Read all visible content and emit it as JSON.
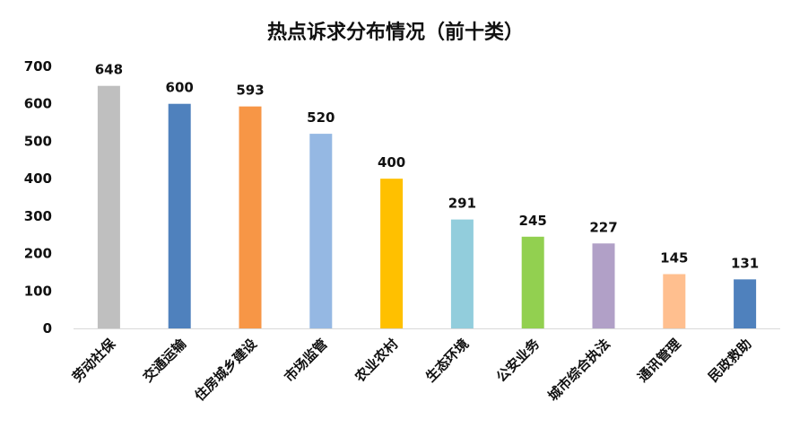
{
  "chart_data": {
    "type": "bar",
    "title": "热点诉求分布情况（前十类）",
    "categories": [
      "劳动社保",
      "交通运输",
      "住房城乡建设",
      "市场监管",
      "农业农村",
      "生态环境",
      "公安业务",
      "城市综合执法",
      "通讯管理",
      "民政救助"
    ],
    "values": [
      648,
      600,
      593,
      520,
      400,
      291,
      245,
      227,
      145,
      131
    ],
    "value_labels": [
      "648",
      "600",
      "593",
      "520",
      "400",
      "291",
      "245",
      "227",
      "145",
      "131"
    ],
    "colors": [
      "#BFBFBF",
      "#4F81BD",
      "#F79646",
      "#95B8E3",
      "#FFC000",
      "#92CDDC",
      "#92D050",
      "#B1A0C7",
      "#FFBF8F",
      "#4F81BD"
    ],
    "ylim": [
      0,
      700
    ],
    "yticks": [
      "0",
      "100",
      "200",
      "300",
      "400",
      "500",
      "600",
      "700"
    ],
    "xlabel": "",
    "ylabel": "",
    "grid": false,
    "legend": "none"
  }
}
